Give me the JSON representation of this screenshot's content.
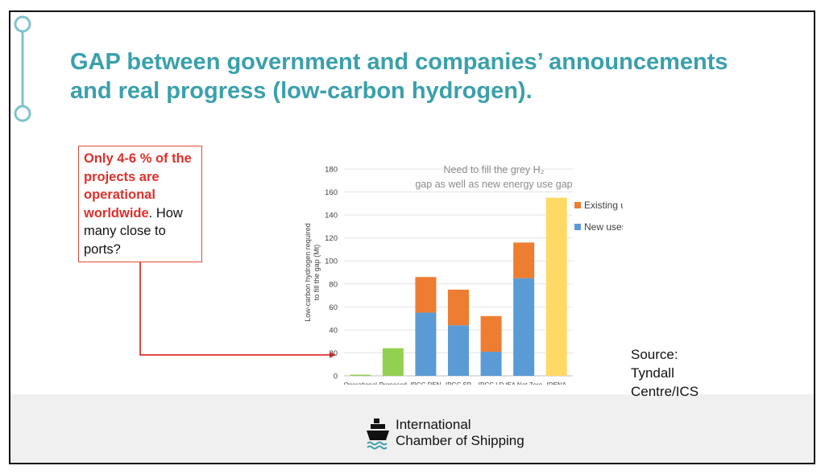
{
  "slide": {
    "title_lines": [
      "GAP between government and companies’ announcements",
      "and real progress (low-carbon hydrogen)."
    ],
    "callout": {
      "highlight": "Only 4-6 % of the projects are operational worldwide",
      "rest": ". How many close to ports?"
    },
    "source_lines": [
      "Source:",
      "Tyndall",
      "Centre/ICS"
    ],
    "org_lines": [
      "International",
      "Chamber of Shipping"
    ],
    "accent_color": "#3aa0ac",
    "callout_color": "#e0302a"
  },
  "chart_data": {
    "type": "bar",
    "stacked": true,
    "annotation": "Need to fill the grey H₂ gap as well as new energy use gap",
    "ylabel_lines": [
      "Low-carbon hydrogen required",
      "to fill the gap (Mt)"
    ],
    "xlabel": "",
    "ylim": [
      0,
      180
    ],
    "yticks": [
      0,
      20,
      40,
      60,
      80,
      100,
      120,
      140,
      160,
      180
    ],
    "grid": true,
    "legend_position": "right",
    "categories": [
      "Operational",
      "Proposed",
      "IPCC REN",
      "IPCC SP",
      "IPCC LD",
      "IEA Net Zero",
      "IRENA"
    ],
    "series": [
      {
        "name": "New uses",
        "color": "#5b9bd5",
        "values": [
          0,
          0,
          55,
          44,
          21,
          85,
          0
        ]
      },
      {
        "name": "Existing uses",
        "color": "#ed7d31",
        "values": [
          0,
          0,
          31,
          31,
          31,
          31,
          0
        ]
      }
    ],
    "single_bars": [
      {
        "category": "Operational",
        "value": 1,
        "color": "#92d050"
      },
      {
        "category": "Proposed",
        "value": 24,
        "color": "#92d050"
      },
      {
        "category": "IRENA",
        "value": 155,
        "color": "#ffd966"
      }
    ]
  }
}
